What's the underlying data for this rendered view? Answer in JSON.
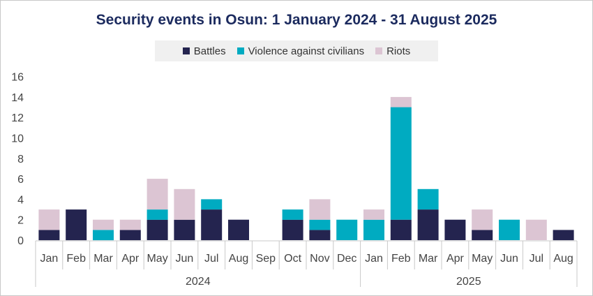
{
  "chart_data": {
    "type": "bar",
    "stacked": true,
    "title": "Security events in Osun: 1 January 2024 - 31 August 2025",
    "xlabel": "",
    "ylabel": "",
    "ylim": [
      0,
      16
    ],
    "yticks": [
      0,
      2,
      4,
      6,
      8,
      10,
      12,
      14,
      16
    ],
    "grid": false,
    "legend_position": "top-center",
    "categories": [
      "Jan",
      "Feb",
      "Mar",
      "Apr",
      "May",
      "Jun",
      "Jul",
      "Aug",
      "Sep",
      "Oct",
      "Nov",
      "Dec",
      "Jan",
      "Feb",
      "Mar",
      "Apr",
      "May",
      "Jun",
      "Jul",
      "Aug"
    ],
    "year_groups": [
      {
        "label": "2024",
        "start": 0,
        "end": 11
      },
      {
        "label": "2025",
        "start": 12,
        "end": 19
      }
    ],
    "series": [
      {
        "name": "Battles",
        "color": "#24244f",
        "values": [
          1,
          3,
          0,
          1,
          2,
          2,
          3,
          2,
          0,
          2,
          1,
          0,
          0,
          2,
          3,
          2,
          1,
          0,
          0,
          1
        ]
      },
      {
        "name": "Violence against civilians",
        "color": "#00abc1",
        "values": [
          0,
          0,
          1,
          0,
          1,
          0,
          1,
          0,
          0,
          1,
          1,
          2,
          2,
          11,
          2,
          0,
          0,
          2,
          0,
          0
        ]
      },
      {
        "name": "Riots",
        "color": "#dcc5d3",
        "values": [
          2,
          0,
          1,
          1,
          3,
          3,
          0,
          0,
          0,
          0,
          2,
          0,
          1,
          1,
          0,
          0,
          2,
          0,
          2,
          0
        ]
      }
    ]
  }
}
